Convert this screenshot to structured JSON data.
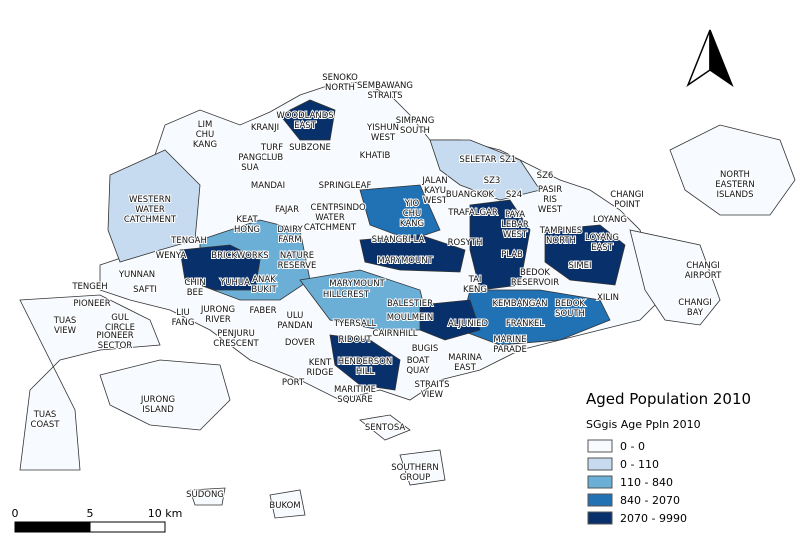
{
  "map": {
    "labels": [
      "SENOKO NORTH",
      "SEMBAWANG STRAITS",
      "WOODLANDS EAST",
      "LIM CHU KANG",
      "KRANJI",
      "SUBZONE",
      "TURF CLUB",
      "PANG SUA",
      "YISHUN WEST",
      "SIMPANG SOUTH",
      "KHATIB",
      "SELETAR",
      "SZ1",
      "SZ3",
      "SZ6",
      "SPRINGLEAF",
      "MANDAI",
      "JALAN KAYU WEST",
      "BUANGKOK",
      "S24",
      "PASIR RIS WEST",
      "CHANGI POINT",
      "NORTH EASTERN ISLANDS",
      "WESTERN WATER CATCHMENT",
      "CENTRAL WATER CATCHMENT",
      "SINDO",
      "FAJAR",
      "KEAT HONG",
      "YIO CHU KANG",
      "TRAFALGAR",
      "PAYA LEBAR WEST",
      "LOYANG",
      "TENGAH",
      "DAIRY FARM",
      "ROSYTH",
      "TAMPINES NORTH",
      "LOYANG EAST",
      "SHANGRI-LA",
      "PLAB",
      "BRICKWORKS",
      "WENYA",
      "NATURE RESERVE",
      "MARYMOUNT",
      "CHANGI AIRPORT",
      "BEDOK RESERVOIR",
      "SIMEI",
      "YUNNAN",
      "SAFTI",
      "CHIN BEE",
      "YUHUA",
      "ANAK BUKIT",
      "MARYMOUNT",
      "TENGEH",
      "PIONEER",
      "TAI KENG",
      "HILLCREST",
      "BALESTIER",
      "KEMBANGAN",
      "BEDOK SOUTH",
      "XILIN",
      "CHANGI BAY",
      "GUL CIRCLE",
      "LIU FANG",
      "JURONG RIVER",
      "FABER",
      "ULU PANDAN",
      "MOULMEIN",
      "ALJUNIED",
      "FRANKEL",
      "TUAS VIEW",
      "PIONEER SECTOR",
      "TYERSALL",
      "PENJURU CRESCENT",
      "DOVER",
      "RIDOUT",
      "CAIRNHILL",
      "MARINE PARADE",
      "BUGIS",
      "KENT RIDGE",
      "HENDERSON HILL",
      "BOAT QUAY",
      "MARINA EAST",
      "PORT",
      "MARITIME SQUARE",
      "STRAITS VIEW",
      "JURONG ISLAND",
      "TUAS COAST",
      "SENTOSA",
      "SOUTHERN GROUP",
      "SUDONG",
      "BUKOM"
    ],
    "legend": {
      "title": "Aged Population 2010",
      "subtitle": "SGgis Age Ppln 2010",
      "items": [
        {
          "label": "0 - 0",
          "color": "#f7fbff"
        },
        {
          "label": "0 - 110",
          "color": "#c6dbef"
        },
        {
          "label": "110 - 840",
          "color": "#6baed6"
        },
        {
          "label": "840 - 2070",
          "color": "#2171b5"
        },
        {
          "label": "2070 - 9990",
          "color": "#08306b"
        }
      ]
    },
    "scale_bar": [
      "0",
      "5",
      "10 km"
    ]
  }
}
